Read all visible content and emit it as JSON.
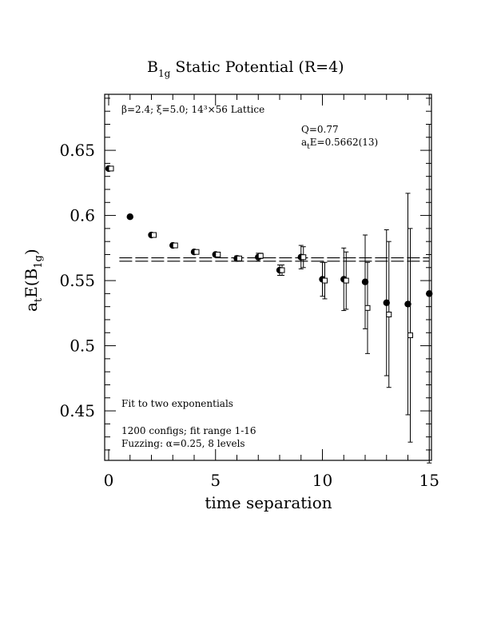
{
  "chart_data": {
    "type": "scatter",
    "title": "B",
    "title_sub": "1g",
    "title_rest": " Static Potential (R=4)",
    "xlabel": "time separation",
    "ylabel_main": "a",
    "ylabel_sub1": "t",
    "ylabel_mid": "E(B",
    "ylabel_sub2": "1g",
    "ylabel_end": ")",
    "xlim": [
      0,
      15
    ],
    "ylim": [
      0.412,
      0.693
    ],
    "xticks": [
      0,
      5,
      10,
      15
    ],
    "yticks": [
      0.45,
      0.5,
      0.55,
      0.6,
      0.65
    ],
    "xtick_labels": [
      "0",
      "5",
      "10",
      "15"
    ],
    "ytick_labels": [
      "0.45",
      "0.5",
      "0.55",
      "0.6",
      "0.65"
    ],
    "grid": false,
    "annotations": {
      "lattice": "β=2.4; ξ=5.0; 14³×56 Lattice",
      "q": "Q=0.77",
      "energy_main": "a",
      "energy_sub": "t",
      "energy_rest": "E=0.5662(13)",
      "fit_type": "Fit to two exponentials",
      "configs": "1200 configs; fit range 1-16",
      "fuzzing": "Fuzzing: α=0.25, 8 levels"
    },
    "fit": {
      "value": 0.5662,
      "error": 0.0013,
      "x_range": [
        0.5,
        15
      ]
    },
    "series": [
      {
        "marker": "filled-circle",
        "x": [
          0,
          1,
          2,
          3,
          4,
          5,
          6,
          7,
          8,
          9,
          10,
          11,
          12,
          13,
          14,
          15
        ],
        "y": [
          0.636,
          0.599,
          0.585,
          0.577,
          0.572,
          0.57,
          0.567,
          0.568,
          0.558,
          0.568,
          0.551,
          0.551,
          0.549,
          0.533,
          0.532,
          0.54
        ],
        "err": [
          0.001,
          0.001,
          0.001,
          0.001,
          0.001,
          0.001,
          0.002,
          0.003,
          0.004,
          0.009,
          0.013,
          0.024,
          0.036,
          0.056,
          0.085,
          0.13
        ]
      },
      {
        "marker": "open-square",
        "x": [
          0,
          2,
          3,
          4,
          5,
          6,
          7,
          8,
          9,
          10,
          11,
          12,
          13,
          14
        ],
        "y": [
          0.636,
          0.585,
          0.577,
          0.572,
          0.57,
          0.567,
          0.569,
          0.558,
          0.568,
          0.55,
          0.55,
          0.529,
          0.524,
          0.508
        ],
        "err": [
          0.001,
          0.001,
          0.001,
          0.001,
          0.001,
          0.001,
          0.002,
          0.004,
          0.008,
          0.014,
          0.022,
          0.035,
          0.056,
          0.082
        ]
      }
    ]
  }
}
